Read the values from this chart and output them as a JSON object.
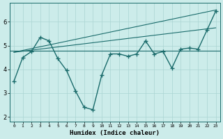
{
  "xlabel": "Humidex (Indice chaleur)",
  "bg_color": "#ccecea",
  "line_color": "#1a6b6b",
  "grid_color": "#aad4d2",
  "xlim": [
    -0.5,
    23.5
  ],
  "ylim": [
    1.8,
    6.8
  ],
  "xticks": [
    0,
    1,
    2,
    3,
    4,
    5,
    6,
    7,
    8,
    9,
    10,
    11,
    12,
    13,
    14,
    15,
    16,
    17,
    18,
    19,
    20,
    21,
    22,
    23
  ],
  "yticks": [
    2,
    3,
    4,
    5,
    6
  ],
  "line1_x": [
    0,
    23
  ],
  "line1_y": [
    4.72,
    6.5
  ],
  "line2_x": [
    0,
    23
  ],
  "line2_y": [
    4.72,
    5.75
  ],
  "line3_x": [
    0,
    1,
    2,
    3,
    4,
    5,
    6,
    7,
    8,
    9,
    10,
    11,
    12,
    13,
    14,
    15,
    16,
    17,
    18,
    19,
    20,
    21,
    22,
    23
  ],
  "line3_y": [
    3.5,
    4.5,
    4.75,
    5.35,
    5.2,
    4.45,
    3.95,
    3.1,
    2.4,
    2.3,
    3.75,
    4.65,
    4.65,
    4.55,
    4.65,
    5.2,
    4.65,
    4.75,
    4.05,
    4.85,
    4.9,
    4.85,
    5.65,
    6.45
  ],
  "linewidth": 1.0,
  "linewidth_trend": 0.8
}
